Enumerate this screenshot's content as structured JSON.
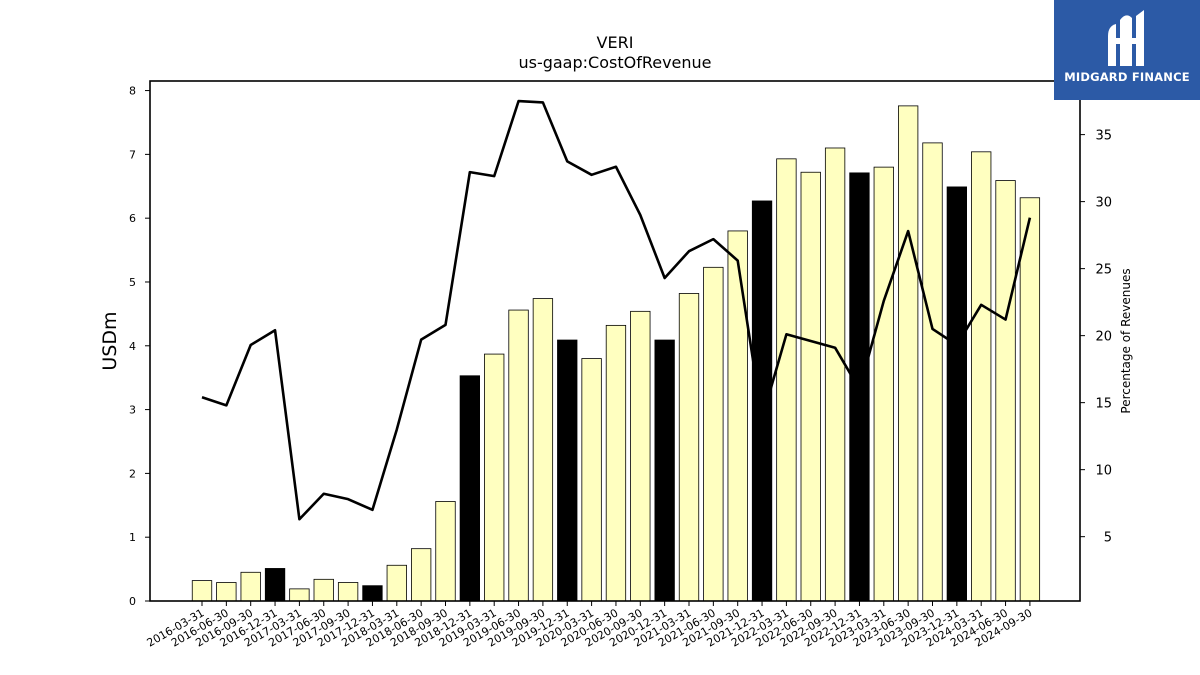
{
  "chart_data": {
    "type": "bar",
    "title": "VERI",
    "subtitle": "us-gaap:CostOfRevenue",
    "ylabel": "USDm",
    "y2label": "Percentage of Revenues",
    "ylim": [
      0,
      8.15
    ],
    "y2lim": [
      0.2,
      39.0
    ],
    "yticks": [
      0,
      1,
      2,
      3,
      4,
      5,
      6,
      7,
      8
    ],
    "y2ticks": [
      5,
      10,
      15,
      20,
      25,
      30,
      35
    ],
    "categories": [
      "2016-03-31",
      "2016-06-30",
      "2016-09-30",
      "2016-12-31",
      "2017-03-31",
      "2017-06-30",
      "2017-09-30",
      "2017-12-31",
      "2018-03-31",
      "2018-06-30",
      "2018-09-30",
      "2018-12-31",
      "2019-03-31",
      "2019-06-30",
      "2019-09-30",
      "2019-12-31",
      "2020-03-31",
      "2020-06-30",
      "2020-09-30",
      "2020-12-31",
      "2021-03-31",
      "2021-06-30",
      "2021-09-30",
      "2021-12-31",
      "2022-03-31",
      "2022-06-30",
      "2022-09-30",
      "2022-12-31",
      "2023-03-31",
      "2023-06-30",
      "2023-09-30",
      "2023-12-31",
      "2024-03-31",
      "2024-06-30",
      "2024-09-30"
    ],
    "series": [
      {
        "kind": "bar",
        "values": [
          0.32,
          0.29,
          0.45,
          0.51,
          0.19,
          0.34,
          0.29,
          0.24,
          0.56,
          0.82,
          1.56,
          3.53,
          3.87,
          4.56,
          4.74,
          4.09,
          3.8,
          4.32,
          4.54,
          4.09,
          4.82,
          5.23,
          5.8,
          6.27,
          6.93,
          6.72,
          7.1,
          6.71,
          6.8,
          7.76,
          7.18,
          6.49,
          7.04,
          6.59,
          6.32
        ],
        "annual_flags": [
          false,
          false,
          false,
          true,
          false,
          false,
          false,
          true,
          false,
          false,
          false,
          true,
          false,
          false,
          false,
          true,
          false,
          false,
          false,
          true,
          false,
          false,
          false,
          true,
          false,
          false,
          false,
          true,
          false,
          false,
          false,
          true,
          false,
          false,
          false
        ]
      },
      {
        "kind": "line",
        "axis": "right",
        "values": [
          15.4,
          14.8,
          19.3,
          20.4,
          6.3,
          8.2,
          7.8,
          7.0,
          13.0,
          19.7,
          20.8,
          32.2,
          31.9,
          37.5,
          37.4,
          33.0,
          32.0,
          32.6,
          29.0,
          24.3,
          26.3,
          27.2,
          25.6,
          13.8,
          20.1,
          19.6,
          19.1,
          16.0,
          22.6,
          27.8,
          20.5,
          19.3,
          22.3,
          21.2,
          28.8
        ]
      }
    ],
    "colors": {
      "quarterly": "#ffffc0",
      "annual": "#000000",
      "line": "#000000"
    },
    "grid": false
  },
  "logo": {
    "text": "MIDGARD FINANCE"
  }
}
